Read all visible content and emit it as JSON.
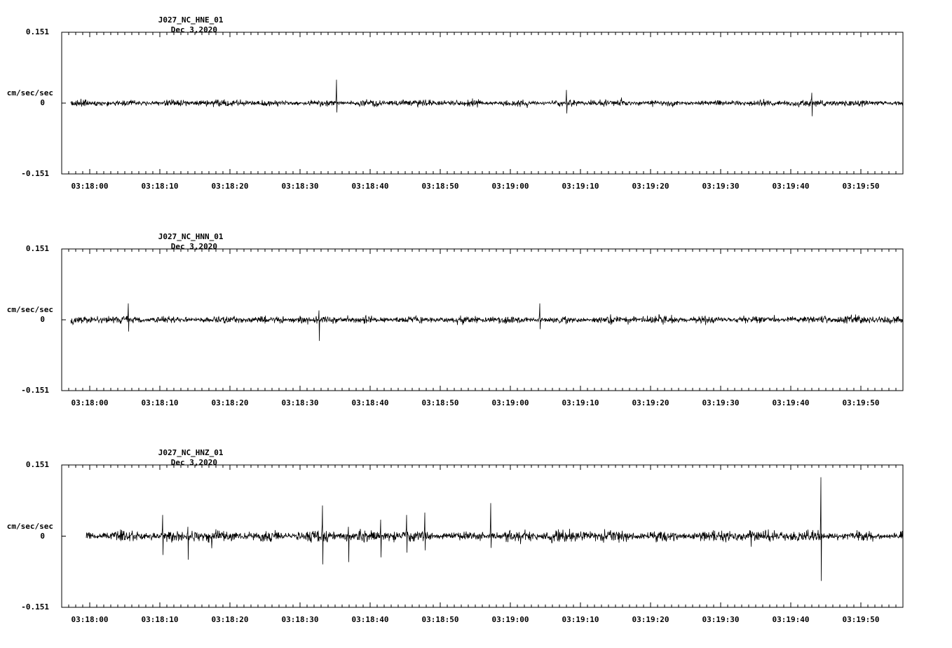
{
  "figure": {
    "background": "#ffffff",
    "ink_color": "#000000",
    "description": "Three-component strong-motion seismogram record, station J027 network NC, channels HNE/HNN/HNZ"
  },
  "chart_data": [
    {
      "type": "line",
      "title": "J027_NC_HNE_01",
      "date_label": "Dec 3,2020",
      "ylabel": "cm/sec/sec",
      "y_ticks": [
        "0.151",
        "0",
        "-0.151"
      ],
      "ylim": [
        -0.151,
        0.151
      ],
      "x_tick_labels": [
        "03:18:00",
        "03:18:10",
        "03:18:20",
        "03:18:30",
        "03:18:40",
        "03:18:50",
        "03:19:00",
        "03:19:10",
        "03:19:20",
        "03:19:30",
        "03:19:40",
        "03:19:50"
      ],
      "x_minor_tick_seconds": 1,
      "x_major_tick_seconds": 10,
      "x_span_seconds": 120,
      "grid": false,
      "legend": "none",
      "series": {
        "name": "J027_NC_HNE_01",
        "kind": "seismic-noise-waveform",
        "baseline": 0,
        "noise_amplitude": 0.01,
        "seed": 11,
        "trace_t0": -2.7,
        "trace_t1": 116,
        "spikes": [
          {
            "t": 35.2,
            "max": 0.05,
            "min": -0.02
          },
          {
            "t": 68.0,
            "max": 0.028,
            "min": -0.022
          },
          {
            "t": 103.0,
            "max": 0.022,
            "min": -0.028
          }
        ]
      }
    },
    {
      "type": "line",
      "title": "J027_NC_HNN_01",
      "date_label": "Dec 3,2020",
      "ylabel": "cm/sec/sec",
      "y_ticks": [
        "0.151",
        "0",
        "-0.151"
      ],
      "ylim": [
        -0.151,
        0.151
      ],
      "x_tick_labels": [
        "03:18:00",
        "03:18:10",
        "03:18:20",
        "03:18:30",
        "03:18:40",
        "03:18:50",
        "03:19:00",
        "03:19:10",
        "03:19:20",
        "03:19:30",
        "03:19:40",
        "03:19:50"
      ],
      "x_minor_tick_seconds": 1,
      "x_major_tick_seconds": 10,
      "x_span_seconds": 120,
      "grid": false,
      "legend": "none",
      "series": {
        "name": "J027_NC_HNN_01",
        "kind": "seismic-noise-waveform",
        "baseline": 0,
        "noise_amplitude": 0.011,
        "seed": 22,
        "trace_t0": -2.7,
        "trace_t1": 116,
        "spikes": [
          {
            "t": 5.5,
            "max": 0.035,
            "min": -0.025
          },
          {
            "t": 32.7,
            "max": 0.02,
            "min": -0.045
          },
          {
            "t": 64.2,
            "max": 0.035,
            "min": -0.02
          }
        ]
      }
    },
    {
      "type": "line",
      "title": "J027_NC_HNZ_01",
      "date_label": "Dec 3,2020",
      "ylabel": "cm/sec/sec",
      "y_ticks": [
        "0.151",
        "0",
        "-0.151"
      ],
      "ylim": [
        -0.151,
        0.151
      ],
      "x_tick_labels": [
        "03:18:00",
        "03:18:10",
        "03:18:20",
        "03:18:30",
        "03:18:40",
        "03:18:50",
        "03:19:00",
        "03:19:10",
        "03:19:20",
        "03:19:30",
        "03:19:40",
        "03:19:50"
      ],
      "x_minor_tick_seconds": 1,
      "x_major_tick_seconds": 10,
      "x_span_seconds": 120,
      "grid": false,
      "legend": "none",
      "series": {
        "name": "J027_NC_HNZ_01",
        "kind": "seismic-noise-waveform",
        "baseline": 0,
        "noise_amplitude": 0.017,
        "seed": 33,
        "trace_t0": -0.5,
        "trace_t1": 116,
        "spikes": [
          {
            "t": 10.4,
            "max": 0.045,
            "min": -0.04
          },
          {
            "t": 14.0,
            "max": 0.02,
            "min": -0.05
          },
          {
            "t": 33.2,
            "max": 0.065,
            "min": -0.06
          },
          {
            "t": 36.9,
            "max": 0.02,
            "min": -0.055
          },
          {
            "t": 41.5,
            "max": 0.035,
            "min": -0.045
          },
          {
            "t": 45.2,
            "max": 0.045,
            "min": -0.035
          },
          {
            "t": 47.8,
            "max": 0.05,
            "min": -0.03
          },
          {
            "t": 57.2,
            "max": 0.07,
            "min": -0.025
          },
          {
            "t": 104.3,
            "max": 0.125,
            "min": -0.095
          }
        ]
      }
    }
  ]
}
